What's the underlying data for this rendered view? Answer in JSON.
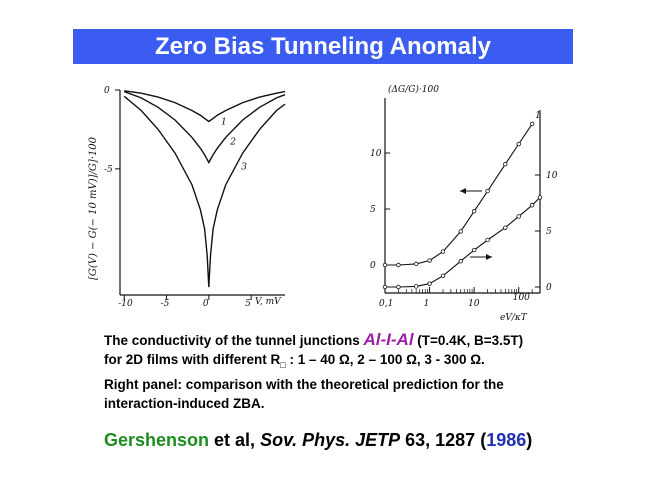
{
  "title": "Zero Bias Tunneling Anomaly",
  "chart_data": [
    {
      "type": "line",
      "panel": "left",
      "ylabel": "[G(V) − G(− 10 mV)]/G]·100",
      "xlabel": "V, mV",
      "x_ticks": [
        "-10",
        "-5",
        "0",
        "5"
      ],
      "y_ticks": [
        "0",
        "-5"
      ],
      "xlim": [
        -10.5,
        9
      ],
      "ylim": [
        -13,
        0
      ],
      "series": [
        {
          "name": "1",
          "x": [
            -10,
            -8,
            -6,
            -4,
            -2,
            -1,
            -0.5,
            0,
            0.5,
            1,
            2,
            4,
            6,
            8,
            9
          ],
          "values": [
            -0.05,
            -0.2,
            -0.45,
            -0.8,
            -1.3,
            -1.6,
            -1.8,
            -2.0,
            -1.8,
            -1.6,
            -1.3,
            -0.8,
            -0.45,
            -0.2,
            -0.1
          ]
        },
        {
          "name": "2",
          "x": [
            -10,
            -8,
            -6,
            -4,
            -2,
            -1,
            -0.5,
            0,
            0.5,
            1,
            2,
            4,
            6,
            8,
            9
          ],
          "values": [
            -0.1,
            -0.5,
            -1.1,
            -1.9,
            -3.0,
            -3.7,
            -4.1,
            -4.6,
            -4.1,
            -3.7,
            -3.0,
            -1.9,
            -1.1,
            -0.5,
            -0.3
          ]
        },
        {
          "name": "3",
          "x": [
            -10,
            -8,
            -6,
            -4,
            -2,
            -1,
            -0.5,
            -0.2,
            0,
            0.2,
            0.5,
            1,
            2,
            4,
            6,
            8,
            9
          ],
          "values": [
            -0.4,
            -1.3,
            -2.5,
            -4.0,
            -6.0,
            -7.6,
            -8.8,
            -10.5,
            -12.5,
            -10.5,
            -8.8,
            -7.6,
            -6.0,
            -4.0,
            -2.5,
            -1.3,
            -0.9
          ]
        }
      ]
    },
    {
      "type": "line",
      "panel": "right",
      "ylabel": "(ΔG/G)·100",
      "xlabel": "eV/κT",
      "x_scale": "log",
      "x_ticks": [
        "0,1",
        "1",
        "10",
        "100"
      ],
      "y_ticks_left": [
        "0",
        "5",
        "10"
      ],
      "y_ticks_right": [
        "0",
        "5",
        "10"
      ],
      "xlim": [
        0.1,
        300
      ],
      "series": [
        {
          "name": "1",
          "axis": "left",
          "x": [
            0.1,
            0.2,
            0.5,
            1,
            2,
            5,
            10,
            20,
            50,
            100,
            200
          ],
          "values": [
            0,
            0,
            0.1,
            0.4,
            1.2,
            3.0,
            4.8,
            6.6,
            9.0,
            10.8,
            12.6
          ]
        },
        {
          "name": "2",
          "axis": "right",
          "x": [
            0.1,
            0.2,
            0.5,
            1,
            2,
            5,
            10,
            20,
            50,
            100,
            200,
            300
          ],
          "values": [
            0,
            0,
            0.05,
            0.3,
            1.0,
            2.3,
            3.3,
            4.2,
            5.3,
            6.3,
            7.3,
            8.0
          ]
        }
      ]
    }
  ],
  "description": {
    "line1_pre": "The conductivity of the tunnel junctions ",
    "line1_highlight": "Al-I-Al",
    "line1_post": " (T=0.4K, B=3.5T)",
    "line2_pre": "for 2D films with different R",
    "line2_sub": "□",
    "line2_post": " : 1 – 40 Ω, 2 – 100 Ω, 3 - 300 Ω.",
    "line3": "Right panel: comparison with the theoretical prediction for the",
    "line4": "interaction-induced ZBA."
  },
  "citation": {
    "author": "Gershenson",
    "etal": " et al, ",
    "journal": "Sov. Phys. JETP",
    "volume_pages": " 63, 1287 (",
    "year": "1986",
    "close": ")"
  },
  "colors": {
    "title_bar": "#3a5cf0",
    "highlight": "#9b1fa6",
    "author": "#1e8c1e",
    "year": "#2230b8"
  }
}
